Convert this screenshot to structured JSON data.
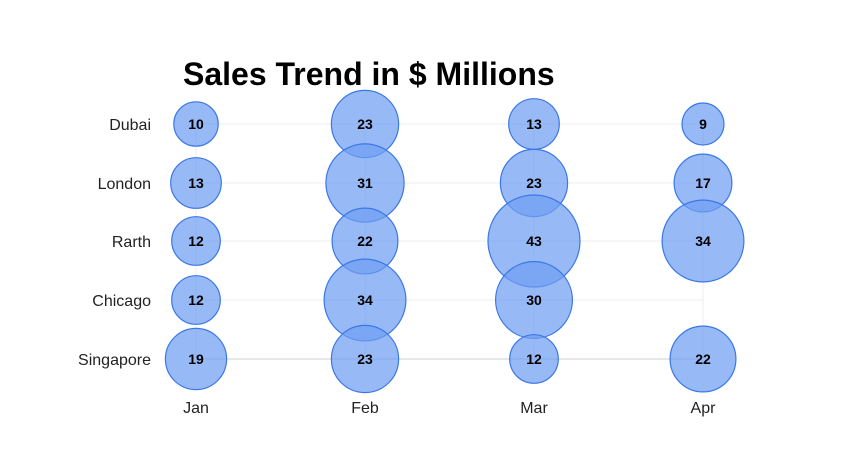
{
  "chart_data": {
    "type": "scatter",
    "title": "Sales Trend in $ Millions",
    "x_categories": [
      "Jan",
      "Feb",
      "Mar",
      "Apr"
    ],
    "y_categories": [
      "Dubai",
      "London",
      "Rarth",
      "Chicago",
      "Singapore"
    ],
    "points": [
      {
        "x": "Jan",
        "y": "Dubai",
        "value": 10
      },
      {
        "x": "Feb",
        "y": "Dubai",
        "value": 23
      },
      {
        "x": "Mar",
        "y": "Dubai",
        "value": 13
      },
      {
        "x": "Apr",
        "y": "Dubai",
        "value": 9
      },
      {
        "x": "Jan",
        "y": "London",
        "value": 13
      },
      {
        "x": "Feb",
        "y": "London",
        "value": 31
      },
      {
        "x": "Mar",
        "y": "London",
        "value": 23
      },
      {
        "x": "Apr",
        "y": "London",
        "value": 17
      },
      {
        "x": "Jan",
        "y": "Rarth",
        "value": 12
      },
      {
        "x": "Feb",
        "y": "Rarth",
        "value": 22
      },
      {
        "x": "Mar",
        "y": "Rarth",
        "value": 43
      },
      {
        "x": "Apr",
        "y": "Rarth",
        "value": 34
      },
      {
        "x": "Jan",
        "y": "Chicago",
        "value": 12
      },
      {
        "x": "Feb",
        "y": "Chicago",
        "value": 34
      },
      {
        "x": "Mar",
        "y": "Chicago",
        "value": 30
      },
      {
        "x": "Jan",
        "y": "Singapore",
        "value": 19
      },
      {
        "x": "Feb",
        "y": "Singapore",
        "value": 23
      },
      {
        "x": "Mar",
        "y": "Singapore",
        "value": 12
      },
      {
        "x": "Apr",
        "y": "Singapore",
        "value": 22
      }
    ],
    "grid": true,
    "legend": "none",
    "bubble_color": "#6f9ef3",
    "bubble_stroke": "#3b78e7"
  }
}
